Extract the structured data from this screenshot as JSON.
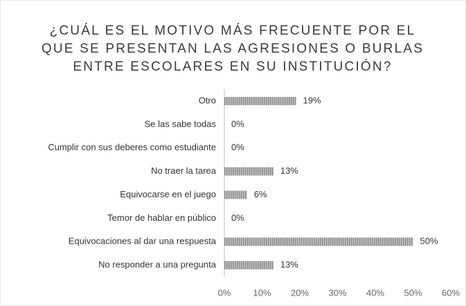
{
  "chart_data": {
    "type": "bar",
    "orientation": "horizontal",
    "title": [
      "¿CUÁL ES EL MOTIVO MÁS FRECUENTE POR EL",
      "QUE SE PRESENTAN LAS AGRESIONES O BURLAS",
      "ENTRE ESCOLARES EN SU INSTITUCIÓN?"
    ],
    "categories": [
      "Otro",
      "Se las sabe todas",
      "Cumplir con sus deberes como estudiante",
      "No traer la tarea",
      "Equivocarse en el juego",
      "Temor de hablar en público",
      "Equivocaciones al dar una respuesta",
      "No responder a una pregunta"
    ],
    "values": [
      19,
      0,
      0,
      13,
      6,
      0,
      50,
      13
    ],
    "value_labels": [
      "19%",
      "0%",
      "0%",
      "13%",
      "6%",
      "0%",
      "50%",
      "13%"
    ],
    "color": "#9a9a9a",
    "xlim": [
      0,
      60
    ],
    "xticks": [
      {
        "value": 0,
        "label": "0%"
      },
      {
        "value": 10,
        "label": "10%"
      },
      {
        "value": 20,
        "label": "20%"
      },
      {
        "value": 30,
        "label": "30%"
      },
      {
        "value": 40,
        "label": "40%"
      },
      {
        "value": 50,
        "label": "50%"
      },
      {
        "value": 60,
        "label": "60%"
      }
    ],
    "grid": false
  }
}
